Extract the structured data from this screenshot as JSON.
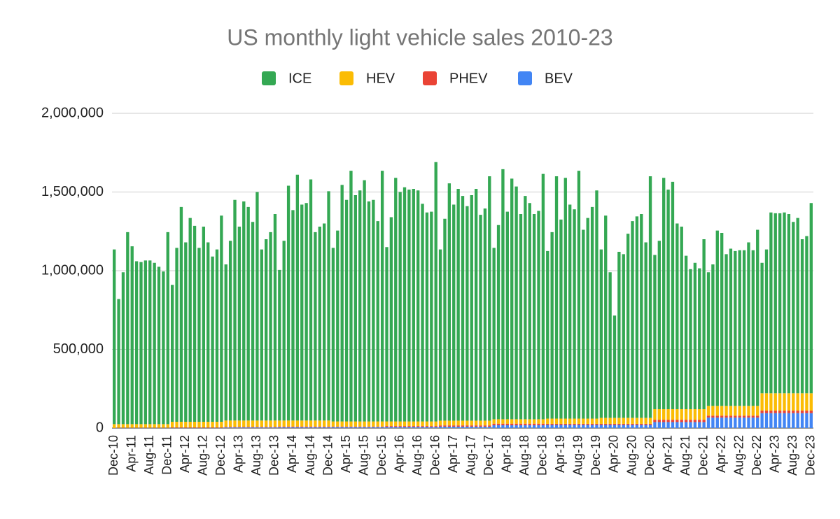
{
  "chart_data": {
    "type": "bar",
    "stacked": true,
    "title": "US monthly light vehicle sales 2010-23",
    "categories": [
      "Dec-10",
      null,
      null,
      null,
      "Apr-11",
      null,
      null,
      null,
      "Aug-11",
      null,
      null,
      null,
      "Dec-11",
      null,
      null,
      null,
      "Apr-12",
      null,
      null,
      null,
      "Aug-12",
      null,
      null,
      null,
      "Dec-12",
      null,
      null,
      null,
      "Apr-13",
      null,
      null,
      null,
      "Aug-13",
      null,
      null,
      null,
      "Dec-13",
      null,
      null,
      null,
      "Apr-14",
      null,
      null,
      null,
      "Aug-14",
      null,
      null,
      null,
      "Dec-14",
      null,
      null,
      null,
      "Apr-15",
      null,
      null,
      null,
      "Aug-15",
      null,
      null,
      null,
      "Dec-15",
      null,
      null,
      null,
      "Apr-16",
      null,
      null,
      null,
      "Aug-16",
      null,
      null,
      null,
      "Dec-16",
      null,
      null,
      null,
      "Apr-17",
      null,
      null,
      null,
      "Aug-17",
      null,
      null,
      null,
      "Dec-17",
      null,
      null,
      null,
      "Apr-18",
      null,
      null,
      null,
      "Aug-18",
      null,
      null,
      null,
      "Dec-18",
      null,
      null,
      null,
      "Apr-19",
      null,
      null,
      null,
      "Aug-19",
      null,
      null,
      null,
      "Dec-19",
      null,
      null,
      null,
      "Apr-20",
      null,
      null,
      null,
      "Aug-20",
      null,
      null,
      null,
      "Dec-20",
      null,
      null,
      null,
      "Apr-21",
      null,
      null,
      null,
      "Aug-21",
      null,
      null,
      null,
      "Dec-21",
      null,
      null,
      null,
      "Apr-22",
      null,
      null,
      null,
      "Aug-22",
      null,
      null,
      null,
      "Dec-22",
      null,
      null,
      null,
      "Apr-23",
      null,
      null,
      null,
      "Aug-23",
      null,
      null,
      null,
      "Dec-23"
    ],
    "series": [
      {
        "name": "ICE",
        "color": "#34a853",
        "values": [
          1110000,
          795000,
          965000,
          1220000,
          1130000,
          1035000,
          1030000,
          1040000,
          1040000,
          1025000,
          1000000,
          970000,
          1220000,
          870000,
          1105000,
          1365000,
          1140000,
          1295000,
          1245000,
          1105000,
          1240000,
          1140000,
          1050000,
          1095000,
          1310000,
          992000,
          1142000,
          1402000,
          1232000,
          1392000,
          1357000,
          1262000,
          1452000,
          1087000,
          1152000,
          1197000,
          1312000,
          957000,
          1142000,
          1492000,
          1337000,
          1562000,
          1372000,
          1382000,
          1532000,
          1197000,
          1232000,
          1252000,
          1457000,
          1103000,
          1213000,
          1503000,
          1408000,
          1593000,
          1438000,
          1468000,
          1533000,
          1398000,
          1408000,
          1273000,
          1593000,
          1108000,
          1298000,
          1548000,
          1458000,
          1488000,
          1473000,
          1478000,
          1468000,
          1383000,
          1328000,
          1333000,
          1648000,
          1088000,
          1283000,
          1508000,
          1373000,
          1473000,
          1428000,
          1363000,
          1433000,
          1473000,
          1308000,
          1348000,
          1553000,
          1089000,
          1234000,
          1589000,
          1319000,
          1529000,
          1479000,
          1304000,
          1419000,
          1374000,
          1304000,
          1324000,
          1559000,
          1065000,
          1185000,
          1540000,
          1265000,
          1530000,
          1360000,
          1330000,
          1575000,
          1200000,
          1275000,
          1345000,
          1450000,
          1070000,
          1285000,
          925000,
          650000,
          1055000,
          1040000,
          1170000,
          1250000,
          1280000,
          1295000,
          1115000,
          1535000,
          980000,
          1070000,
          1470000,
          1395000,
          1445000,
          1180000,
          1160000,
          975000,
          890000,
          930000,
          895000,
          1080000,
          849000,
          899000,
          1114000,
          1099000,
          964000,
          999000,
          984000,
          989000,
          989000,
          1039000,
          989000,
          1119000,
          829000,
          914000,
          1149000,
          1144000,
          1144000,
          1149000,
          1139000,
          1089000,
          1114000,
          979000,
          999000,
          1209000
        ]
      },
      {
        "name": "HEV",
        "color": "#fbbc04",
        "values": [
          25000,
          23000,
          23000,
          23000,
          23000,
          23000,
          23000,
          23000,
          23000,
          23000,
          23000,
          23000,
          23000,
          36000,
          36000,
          36000,
          36000,
          36000,
          36000,
          36000,
          36000,
          36000,
          36000,
          36000,
          36000,
          40000,
          40000,
          40000,
          40000,
          40000,
          40000,
          40000,
          40000,
          40000,
          40000,
          40000,
          40000,
          38000,
          38000,
          38000,
          38000,
          38000,
          38000,
          38000,
          38000,
          38000,
          38000,
          38000,
          38000,
          32000,
          32000,
          32000,
          32000,
          32000,
          32000,
          32000,
          32000,
          32000,
          32000,
          32000,
          32000,
          29000,
          29000,
          29000,
          29000,
          29000,
          29000,
          29000,
          29000,
          29000,
          29000,
          29000,
          29000,
          30000,
          30000,
          30000,
          30000,
          30000,
          30000,
          30000,
          30000,
          30000,
          30000,
          30000,
          30000,
          28000,
          28000,
          28000,
          28000,
          28000,
          28000,
          28000,
          28000,
          28000,
          28000,
          28000,
          28000,
          33000,
          33000,
          33000,
          33000,
          33000,
          33000,
          33000,
          33000,
          33000,
          33000,
          33000,
          33000,
          38000,
          38000,
          38000,
          38000,
          38000,
          38000,
          38000,
          38000,
          38000,
          38000,
          38000,
          38000,
          67000,
          67000,
          67000,
          67000,
          67000,
          67000,
          67000,
          67000,
          67000,
          67000,
          67000,
          67000,
          62000,
          62000,
          62000,
          62000,
          62000,
          62000,
          62000,
          62000,
          62000,
          62000,
          62000,
          62000,
          110000,
          110000,
          110000,
          110000,
          110000,
          110000,
          110000,
          110000,
          110000,
          110000,
          110000,
          110000
        ]
      },
      {
        "name": "PHEV",
        "color": "#ea4335",
        "values": [
          0,
          1000,
          1000,
          1000,
          1000,
          1000,
          1000,
          1000,
          1000,
          1000,
          1000,
          1000,
          1000,
          3000,
          3000,
          3000,
          3000,
          3000,
          3000,
          3000,
          3000,
          3000,
          3000,
          3000,
          3000,
          4000,
          4000,
          4000,
          4000,
          4000,
          4000,
          4000,
          4000,
          4000,
          4000,
          4000,
          4000,
          5000,
          5000,
          5000,
          5000,
          5000,
          5000,
          5000,
          5000,
          5000,
          5000,
          5000,
          5000,
          4000,
          4000,
          4000,
          4000,
          4000,
          4000,
          4000,
          4000,
          4000,
          4000,
          4000,
          4000,
          6000,
          6000,
          6000,
          6000,
          6000,
          6000,
          6000,
          6000,
          6000,
          6000,
          6000,
          6000,
          8000,
          8000,
          8000,
          8000,
          8000,
          8000,
          8000,
          8000,
          8000,
          8000,
          8000,
          8000,
          10000,
          10000,
          10000,
          10000,
          10000,
          10000,
          10000,
          10000,
          10000,
          10000,
          10000,
          10000,
          7000,
          7000,
          7000,
          7000,
          7000,
          7000,
          7000,
          7000,
          7000,
          7000,
          7000,
          7000,
          7000,
          7000,
          7000,
          7000,
          7000,
          7000,
          7000,
          7000,
          7000,
          7000,
          7000,
          7000,
          15000,
          15000,
          15000,
          15000,
          15000,
          15000,
          15000,
          15000,
          15000,
          15000,
          15000,
          15000,
          12000,
          12000,
          12000,
          12000,
          12000,
          12000,
          12000,
          12000,
          12000,
          12000,
          12000,
          12000,
          16000,
          16000,
          16000,
          16000,
          16000,
          16000,
          16000,
          16000,
          16000,
          16000,
          16000,
          16000
        ]
      },
      {
        "name": "BEV",
        "color": "#4285f4",
        "values": [
          0,
          1000,
          1000,
          1000,
          1000,
          1000,
          1000,
          1000,
          1000,
          1000,
          1000,
          1000,
          1000,
          1000,
          1000,
          1000,
          1000,
          1000,
          1000,
          1000,
          1000,
          1000,
          1000,
          1000,
          1000,
          4000,
          4000,
          4000,
          4000,
          4000,
          4000,
          4000,
          4000,
          4000,
          4000,
          4000,
          4000,
          5000,
          5000,
          5000,
          5000,
          5000,
          5000,
          5000,
          5000,
          5000,
          5000,
          5000,
          5000,
          6000,
          6000,
          6000,
          6000,
          6000,
          6000,
          6000,
          6000,
          6000,
          6000,
          6000,
          6000,
          7000,
          7000,
          7000,
          7000,
          7000,
          7000,
          7000,
          7000,
          7000,
          7000,
          7000,
          7000,
          9000,
          9000,
          9000,
          9000,
          9000,
          9000,
          9000,
          9000,
          9000,
          9000,
          9000,
          9000,
          18000,
          18000,
          18000,
          18000,
          18000,
          18000,
          18000,
          18000,
          18000,
          18000,
          18000,
          18000,
          20000,
          20000,
          20000,
          20000,
          20000,
          20000,
          20000,
          20000,
          20000,
          20000,
          20000,
          20000,
          20000,
          20000,
          20000,
          20000,
          20000,
          20000,
          20000,
          20000,
          20000,
          20000,
          20000,
          20000,
          38000,
          38000,
          38000,
          38000,
          38000,
          38000,
          38000,
          38000,
          38000,
          38000,
          38000,
          38000,
          67000,
          67000,
          67000,
          67000,
          67000,
          67000,
          67000,
          67000,
          67000,
          67000,
          67000,
          67000,
          95000,
          95000,
          95000,
          95000,
          95000,
          95000,
          95000,
          95000,
          95000,
          95000,
          95000,
          95000
        ]
      }
    ],
    "ylim": [
      0,
      2000000
    ],
    "yticks": [
      0,
      {
        "value": 500000,
        "label": "500,000"
      },
      {
        "value": 1000000,
        "label": "1,000,000"
      },
      {
        "value": 1500000,
        "label": "1,500,000"
      },
      {
        "value": 2000000,
        "label": "2,000,000"
      }
    ],
    "grid": true,
    "legend": "top"
  }
}
